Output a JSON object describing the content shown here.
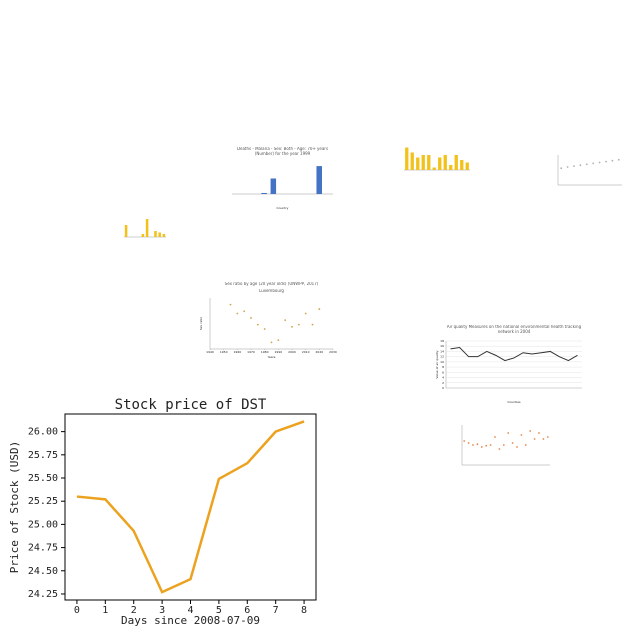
{
  "chart_data": [
    {
      "type": "line",
      "title": "Stock price of DST",
      "xlabel": "Days since 2008-07-09",
      "ylabel": "Price of Stock (USD)",
      "x": [
        0,
        1,
        2,
        3,
        4,
        5,
        6,
        7,
        8
      ],
      "values": [
        25.3,
        25.27,
        24.93,
        24.27,
        24.41,
        25.49,
        25.66,
        26.0,
        26.11
      ],
      "color": "#eca21e",
      "xlim": [
        -0.42,
        8.42
      ],
      "ylim": [
        24.185,
        26.19
      ],
      "xticks": [
        0,
        1,
        2,
        3,
        4,
        5,
        6,
        7,
        8
      ],
      "yticks": [
        {
          "value": 24.25,
          "label": "24.25"
        },
        {
          "value": 24.5,
          "label": "24.50"
        },
        {
          "value": 24.75,
          "label": "24.75"
        },
        {
          "value": 25,
          "label": "25.00"
        },
        {
          "value": 25.25,
          "label": "25.25"
        },
        {
          "value": 25.5,
          "label": "25.50"
        },
        {
          "value": 25.75,
          "label": "25.75"
        },
        {
          "value": 26,
          "label": "26.00"
        }
      ]
    },
    {
      "type": "bar",
      "title": "Deaths - Malaria - Sex: Both - Age: 70+ years (Number) for the year 1999",
      "xlabel": "Country",
      "categories": [
        null,
        null,
        null,
        null,
        null,
        null,
        null,
        null,
        null,
        null,
        null
      ],
      "values": [
        0,
        0,
        0,
        0.1,
        1.5,
        0,
        0,
        0,
        0,
        2.7,
        0
      ],
      "color": "#4472c4",
      "ylim": [
        0,
        3
      ]
    },
    {
      "type": "bar",
      "categories": [
        null,
        null,
        null,
        null,
        null,
        null,
        null,
        null,
        null,
        null,
        null,
        null
      ],
      "values": [
        9,
        7,
        5,
        6,
        6,
        1,
        5,
        6,
        2,
        6,
        4,
        3
      ],
      "color": "#f2c21a",
      "ylim": [
        0,
        10
      ]
    },
    {
      "type": "scatter",
      "categories": [
        null,
        null,
        null,
        null,
        null,
        null,
        null,
        null,
        null,
        null
      ],
      "values": [
        5.6,
        6,
        6.3,
        6.6,
        6.9,
        7.2,
        7.5,
        7.8,
        8.1,
        8.4
      ],
      "color": "#b0b0b0",
      "ylim": [
        0,
        10
      ]
    },
    {
      "type": "bar",
      "categories": [
        null,
        null,
        null,
        null,
        null,
        null,
        null,
        null,
        null,
        null
      ],
      "values": [
        4,
        0,
        0,
        0,
        1,
        6,
        0,
        2,
        1.5,
        1
      ],
      "color": "#f2c21a",
      "ylim": [
        0,
        7
      ]
    },
    {
      "type": "scatter",
      "title": "Sex ratio by age (20 year olds) (UNWPP, 2017)",
      "subtitle": "Luxembourg",
      "xlabel": "Years",
      "ylabel": "Sex ratio",
      "x": [
        1955,
        1960,
        1965,
        1970,
        1975,
        1980,
        1985,
        1990,
        1995,
        2000,
        2005,
        2010,
        2015,
        2020
      ],
      "values": [
        108,
        104,
        105,
        102,
        99,
        97,
        91,
        92,
        101,
        98,
        99,
        104,
        99,
        106
      ],
      "color": "#d4a24c",
      "xlim": [
        1940,
        2030
      ],
      "ylim": [
        88,
        111
      ],
      "xticks": [
        1940,
        1950,
        1960,
        1970,
        1980,
        1990,
        2000,
        2010,
        2020,
        2030
      ]
    },
    {
      "type": "line",
      "title": "Air quality Measures on the national environmental health tracking network in 2004",
      "xlabel": "Counties",
      "ylabel": "Value of air quality",
      "categories": [
        null,
        null,
        null,
        null,
        null,
        null,
        null,
        null,
        null,
        null,
        null,
        null,
        null,
        null,
        null
      ],
      "values": [
        15,
        15.5,
        12,
        12,
        14,
        12.5,
        10.5,
        11.5,
        13.5,
        13,
        13.5,
        14,
        12,
        10.5,
        12.5
      ],
      "color": "#333333",
      "ylim": [
        0,
        18
      ],
      "yticks": [
        0,
        2,
        4,
        6,
        8,
        10,
        12,
        14,
        16,
        18
      ]
    },
    {
      "type": "scatter",
      "categories": [
        null,
        null,
        null,
        null,
        null,
        null,
        null,
        null,
        null,
        null,
        null,
        null,
        null,
        null,
        null,
        null,
        null,
        null,
        null,
        null
      ],
      "values": [
        6,
        5.5,
        5,
        5.2,
        4.5,
        4.8,
        5,
        7,
        4,
        5,
        8,
        5.5,
        4.5,
        7.5,
        5,
        8.5,
        6.5,
        8,
        6.5,
        7
      ],
      "color": "#e8874a",
      "ylim": [
        0,
        10
      ]
    }
  ]
}
